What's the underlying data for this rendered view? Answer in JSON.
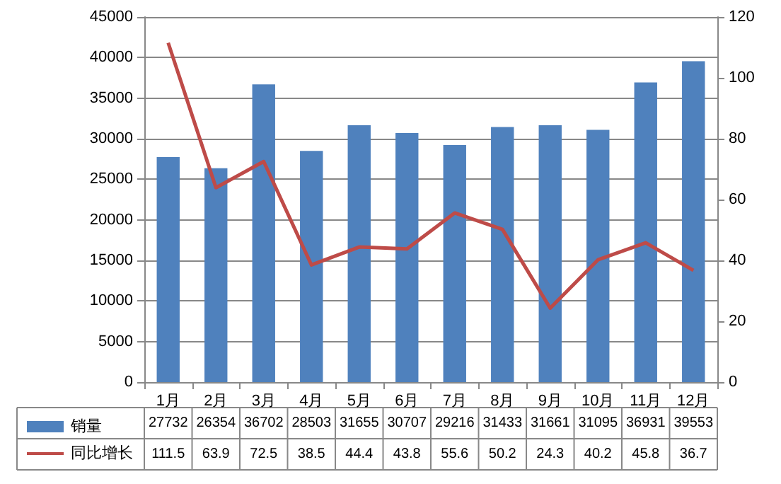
{
  "chart_data": {
    "type": "bar",
    "categories": [
      "1月",
      "2月",
      "3月",
      "4月",
      "5月",
      "6月",
      "7月",
      "8月",
      "9月",
      "10月",
      "11月",
      "12月"
    ],
    "series": [
      {
        "name": "销量",
        "color": "#4f81bd",
        "values": [
          27732,
          26354,
          36702,
          28503,
          31655,
          30707,
          29216,
          31433,
          31661,
          31095,
          36931,
          39553
        ]
      },
      {
        "name": "同比增长",
        "type": "line",
        "axis": "y2",
        "color": "#be4b48",
        "values": [
          111.5,
          63.9,
          72.5,
          38.5,
          44.4,
          43.8,
          55.6,
          50.2,
          24.3,
          40.2,
          45.8,
          36.7
        ]
      }
    ],
    "ylim": [
      0,
      45000
    ],
    "yticks": [
      0,
      5000,
      10000,
      15000,
      20000,
      25000,
      30000,
      35000,
      40000,
      45000
    ],
    "y2lim": [
      0,
      120
    ],
    "y2ticks": [
      0,
      20,
      40,
      60,
      80,
      100,
      120
    ],
    "grid": "y",
    "legend": "bottom",
    "data_labels": true,
    "marker": "none",
    "line_style": "solid"
  }
}
